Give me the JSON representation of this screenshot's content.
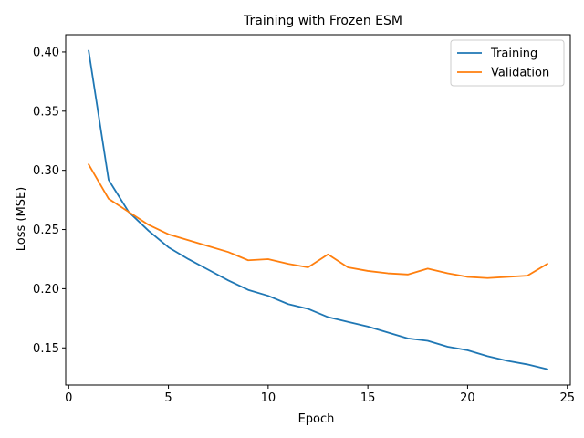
{
  "chart_data": {
    "type": "line",
    "title": "Training with Frozen ESM",
    "xlabel": "Epoch",
    "ylabel": "Loss (MSE)",
    "xlim": [
      -0.15,
      25.15
    ],
    "ylim": [
      0.1186,
      0.4146
    ],
    "xticks": [
      0,
      5,
      10,
      15,
      20,
      25
    ],
    "xtick_labels": [
      "0",
      "5",
      "10",
      "15",
      "20",
      "25"
    ],
    "yticks": [
      0.15,
      0.2,
      0.25,
      0.3,
      0.35,
      0.4
    ],
    "ytick_labels": [
      "0.15",
      "0.20",
      "0.25",
      "0.30",
      "0.35",
      "0.40"
    ],
    "grid": false,
    "legend_position": "top-right",
    "x": [
      1,
      2,
      3,
      4,
      5,
      6,
      7,
      8,
      9,
      10,
      11,
      12,
      13,
      14,
      15,
      16,
      17,
      18,
      19,
      20,
      21,
      22,
      23,
      24
    ],
    "series": [
      {
        "name": "Training",
        "color": "#1f77b4",
        "values": [
          0.401,
          0.292,
          0.265,
          0.249,
          0.235,
          0.225,
          0.216,
          0.207,
          0.199,
          0.194,
          0.187,
          0.183,
          0.176,
          0.172,
          0.168,
          0.163,
          0.158,
          0.156,
          0.151,
          0.148,
          0.143,
          0.139,
          0.136,
          0.132
        ]
      },
      {
        "name": "Validation",
        "color": "#ff7f0e",
        "values": [
          0.305,
          0.276,
          0.265,
          0.254,
          0.246,
          0.241,
          0.236,
          0.231,
          0.224,
          0.225,
          0.221,
          0.218,
          0.229,
          0.218,
          0.215,
          0.213,
          0.212,
          0.217,
          0.213,
          0.21,
          0.209,
          0.21,
          0.211,
          0.221
        ]
      }
    ]
  }
}
